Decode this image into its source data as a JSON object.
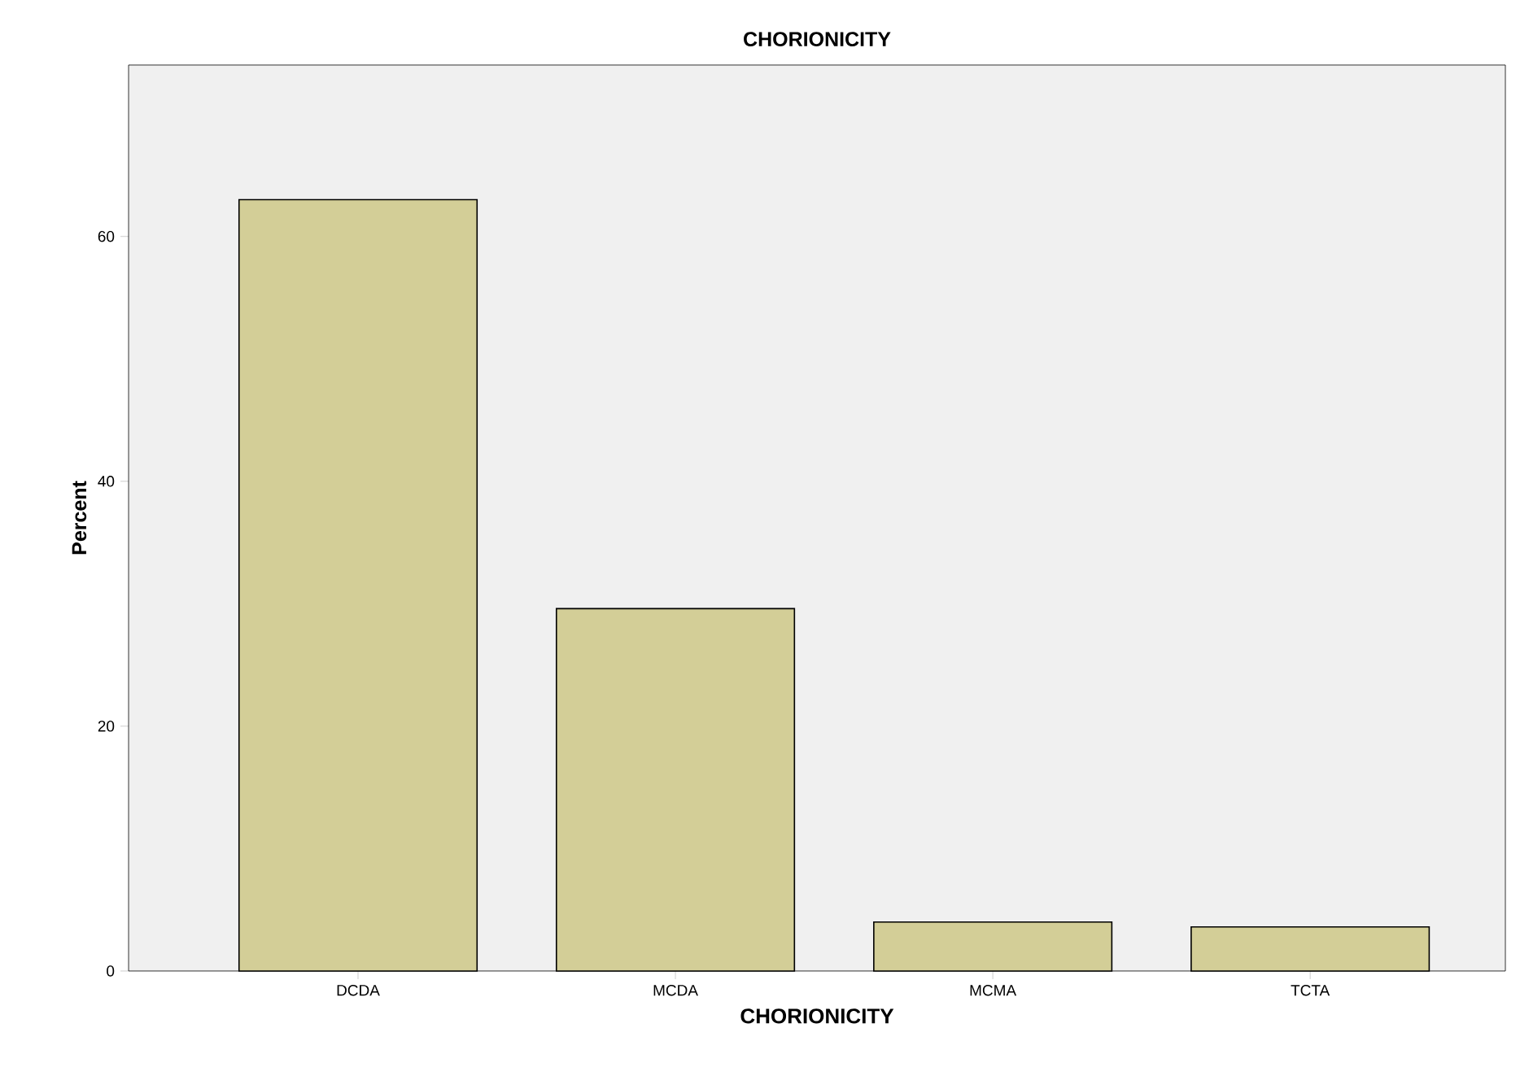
{
  "chart_data": {
    "type": "bar",
    "title": "CHORIONICITY",
    "xlabel": "CHORIONICITY",
    "ylabel": "Percent",
    "categories": [
      "DCDA",
      "MCDA",
      "MCMA",
      "TCTA"
    ],
    "values": [
      63.0,
      29.6,
      4.0,
      3.6
    ],
    "color": "#d3ce97",
    "ylim": [
      0,
      74
    ],
    "yticks": [
      0,
      20,
      40,
      60
    ],
    "grid": false
  }
}
